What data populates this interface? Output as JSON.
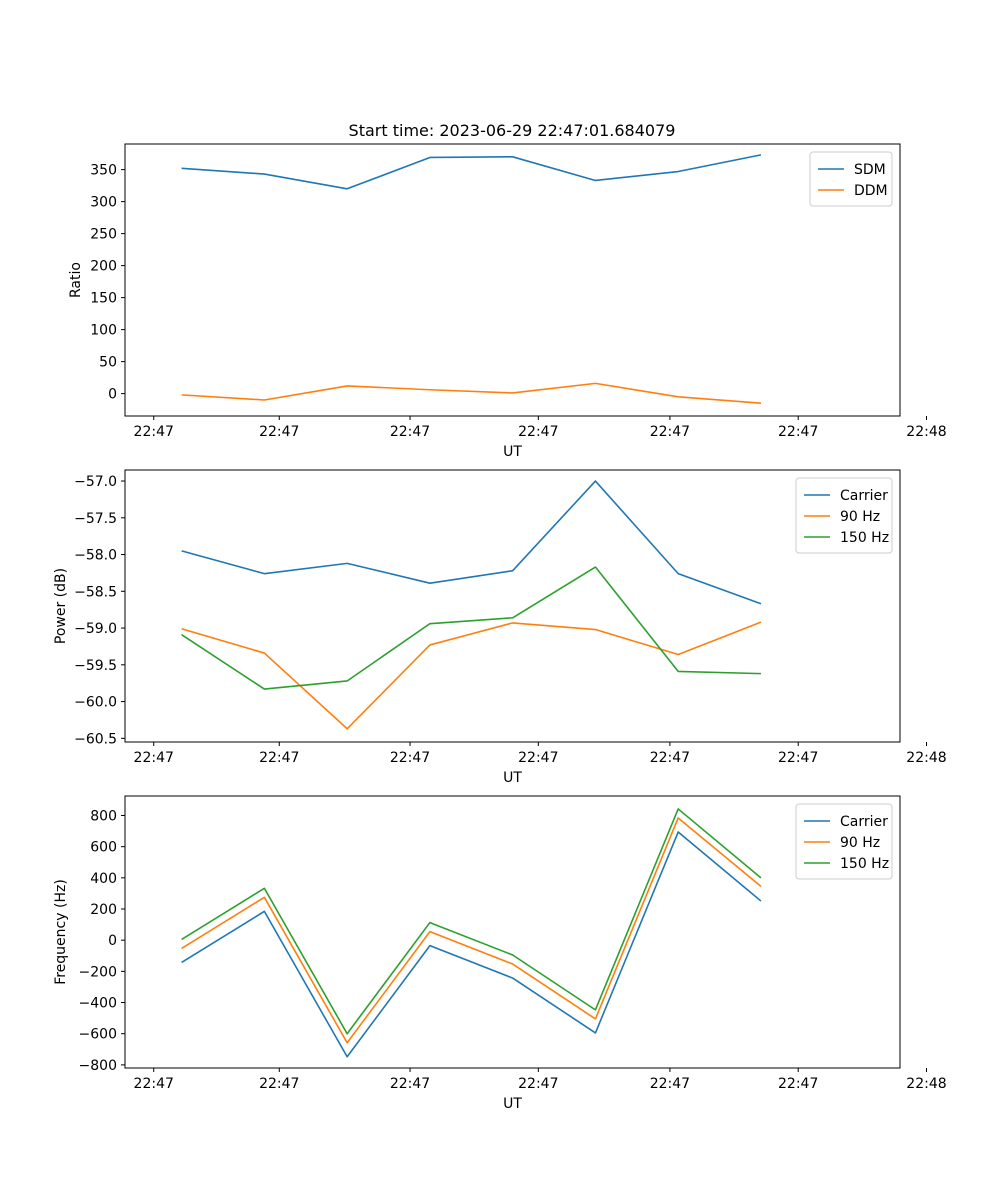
{
  "figure": {
    "title": "Start time: 2023-06-29 22:47:01.684079"
  },
  "chart_data": [
    {
      "type": "line",
      "title": "Start time: 2023-06-29 22:47:01.684079",
      "xlabel": "UT",
      "ylabel": "Ratio",
      "xlim": [
        -3.42,
        43.4
      ],
      "x_ticks": [
        {
          "x": -1.684079,
          "label": "22:47"
        },
        {
          "x": 5.9,
          "label": "22:47"
        },
        {
          "x": 13.8,
          "label": "22:47"
        },
        {
          "x": 21.55,
          "label": "22:47"
        },
        {
          "x": 29.5,
          "label": "22:47"
        },
        {
          "x": 37.25,
          "label": "22:47"
        },
        {
          "x": 45.0,
          "label": "22:48"
        }
      ],
      "ylim": [
        -35,
        390
      ],
      "y_ticks": [
        0,
        50,
        100,
        150,
        200,
        250,
        300,
        350
      ],
      "x": [
        0,
        5,
        10,
        15,
        20,
        25,
        30,
        35
      ],
      "legend": "top-right",
      "grid": false,
      "series": [
        {
          "name": "SDM",
          "color": "#1f77b4",
          "values": [
            352,
            343,
            320,
            369,
            370,
            333,
            347,
            373
          ]
        },
        {
          "name": "DDM",
          "color": "#ff7f0e",
          "values": [
            -2,
            -10,
            12,
            6,
            1,
            16,
            -5,
            -15
          ]
        }
      ]
    },
    {
      "type": "line",
      "title": "",
      "xlabel": "UT",
      "ylabel": "Power (dB)",
      "xlim": [
        -3.42,
        43.4
      ],
      "x_ticks": [
        {
          "x": -1.684079,
          "label": "22:47"
        },
        {
          "x": 5.9,
          "label": "22:47"
        },
        {
          "x": 13.8,
          "label": "22:47"
        },
        {
          "x": 21.55,
          "label": "22:47"
        },
        {
          "x": 29.5,
          "label": "22:47"
        },
        {
          "x": 37.25,
          "label": "22:47"
        },
        {
          "x": 45.0,
          "label": "22:48"
        }
      ],
      "ylim": [
        -60.55,
        -56.85
      ],
      "y_ticks": [
        -60.5,
        -60.0,
        -59.5,
        -59.0,
        -58.5,
        -58.0,
        -57.5,
        -57.0
      ],
      "y_tick_decimals": 1,
      "x": [
        0,
        5,
        10,
        15,
        20,
        25,
        30,
        35
      ],
      "legend": "top-right",
      "grid": false,
      "series": [
        {
          "name": "Carrier",
          "color": "#1f77b4",
          "values": [
            -57.95,
            -58.26,
            -58.12,
            -58.39,
            -58.22,
            -57.0,
            -58.26,
            -58.67
          ]
        },
        {
          "name": "90 Hz",
          "color": "#ff7f0e",
          "values": [
            -59.01,
            -59.34,
            -60.37,
            -59.23,
            -58.93,
            -59.02,
            -59.36,
            -58.92
          ]
        },
        {
          "name": "150 Hz",
          "color": "#2ca02c",
          "values": [
            -59.09,
            -59.83,
            -59.72,
            -58.94,
            -58.86,
            -58.17,
            -59.59,
            -59.62
          ]
        }
      ]
    },
    {
      "type": "line",
      "title": "",
      "xlabel": "UT",
      "ylabel": "Frequency (Hz)",
      "xlim": [
        -3.42,
        43.4
      ],
      "x_ticks": [
        {
          "x": -1.684079,
          "label": "22:47"
        },
        {
          "x": 5.9,
          "label": "22:47"
        },
        {
          "x": 13.8,
          "label": "22:47"
        },
        {
          "x": 21.55,
          "label": "22:47"
        },
        {
          "x": 29.5,
          "label": "22:47"
        },
        {
          "x": 37.25,
          "label": "22:47"
        },
        {
          "x": 45.0,
          "label": "22:48"
        }
      ],
      "ylim": [
        -820,
        925
      ],
      "y_ticks": [
        -800,
        -600,
        -400,
        -200,
        0,
        200,
        400,
        600,
        800
      ],
      "x": [
        0,
        5,
        10,
        15,
        20,
        25,
        30,
        35
      ],
      "legend": "top-right",
      "grid": false,
      "series": [
        {
          "name": "Carrier",
          "color": "#1f77b4",
          "values": [
            -143,
            185,
            -748,
            -35,
            -243,
            -595,
            694,
            251
          ]
        },
        {
          "name": "90 Hz",
          "color": "#ff7f0e",
          "values": [
            -53,
            275,
            -658,
            55,
            -153,
            -505,
            784,
            345
          ]
        },
        {
          "name": "150 Hz",
          "color": "#2ca02c",
          "values": [
            5,
            333,
            -600,
            113,
            -95,
            -447,
            842,
            400
          ]
        }
      ]
    }
  ]
}
